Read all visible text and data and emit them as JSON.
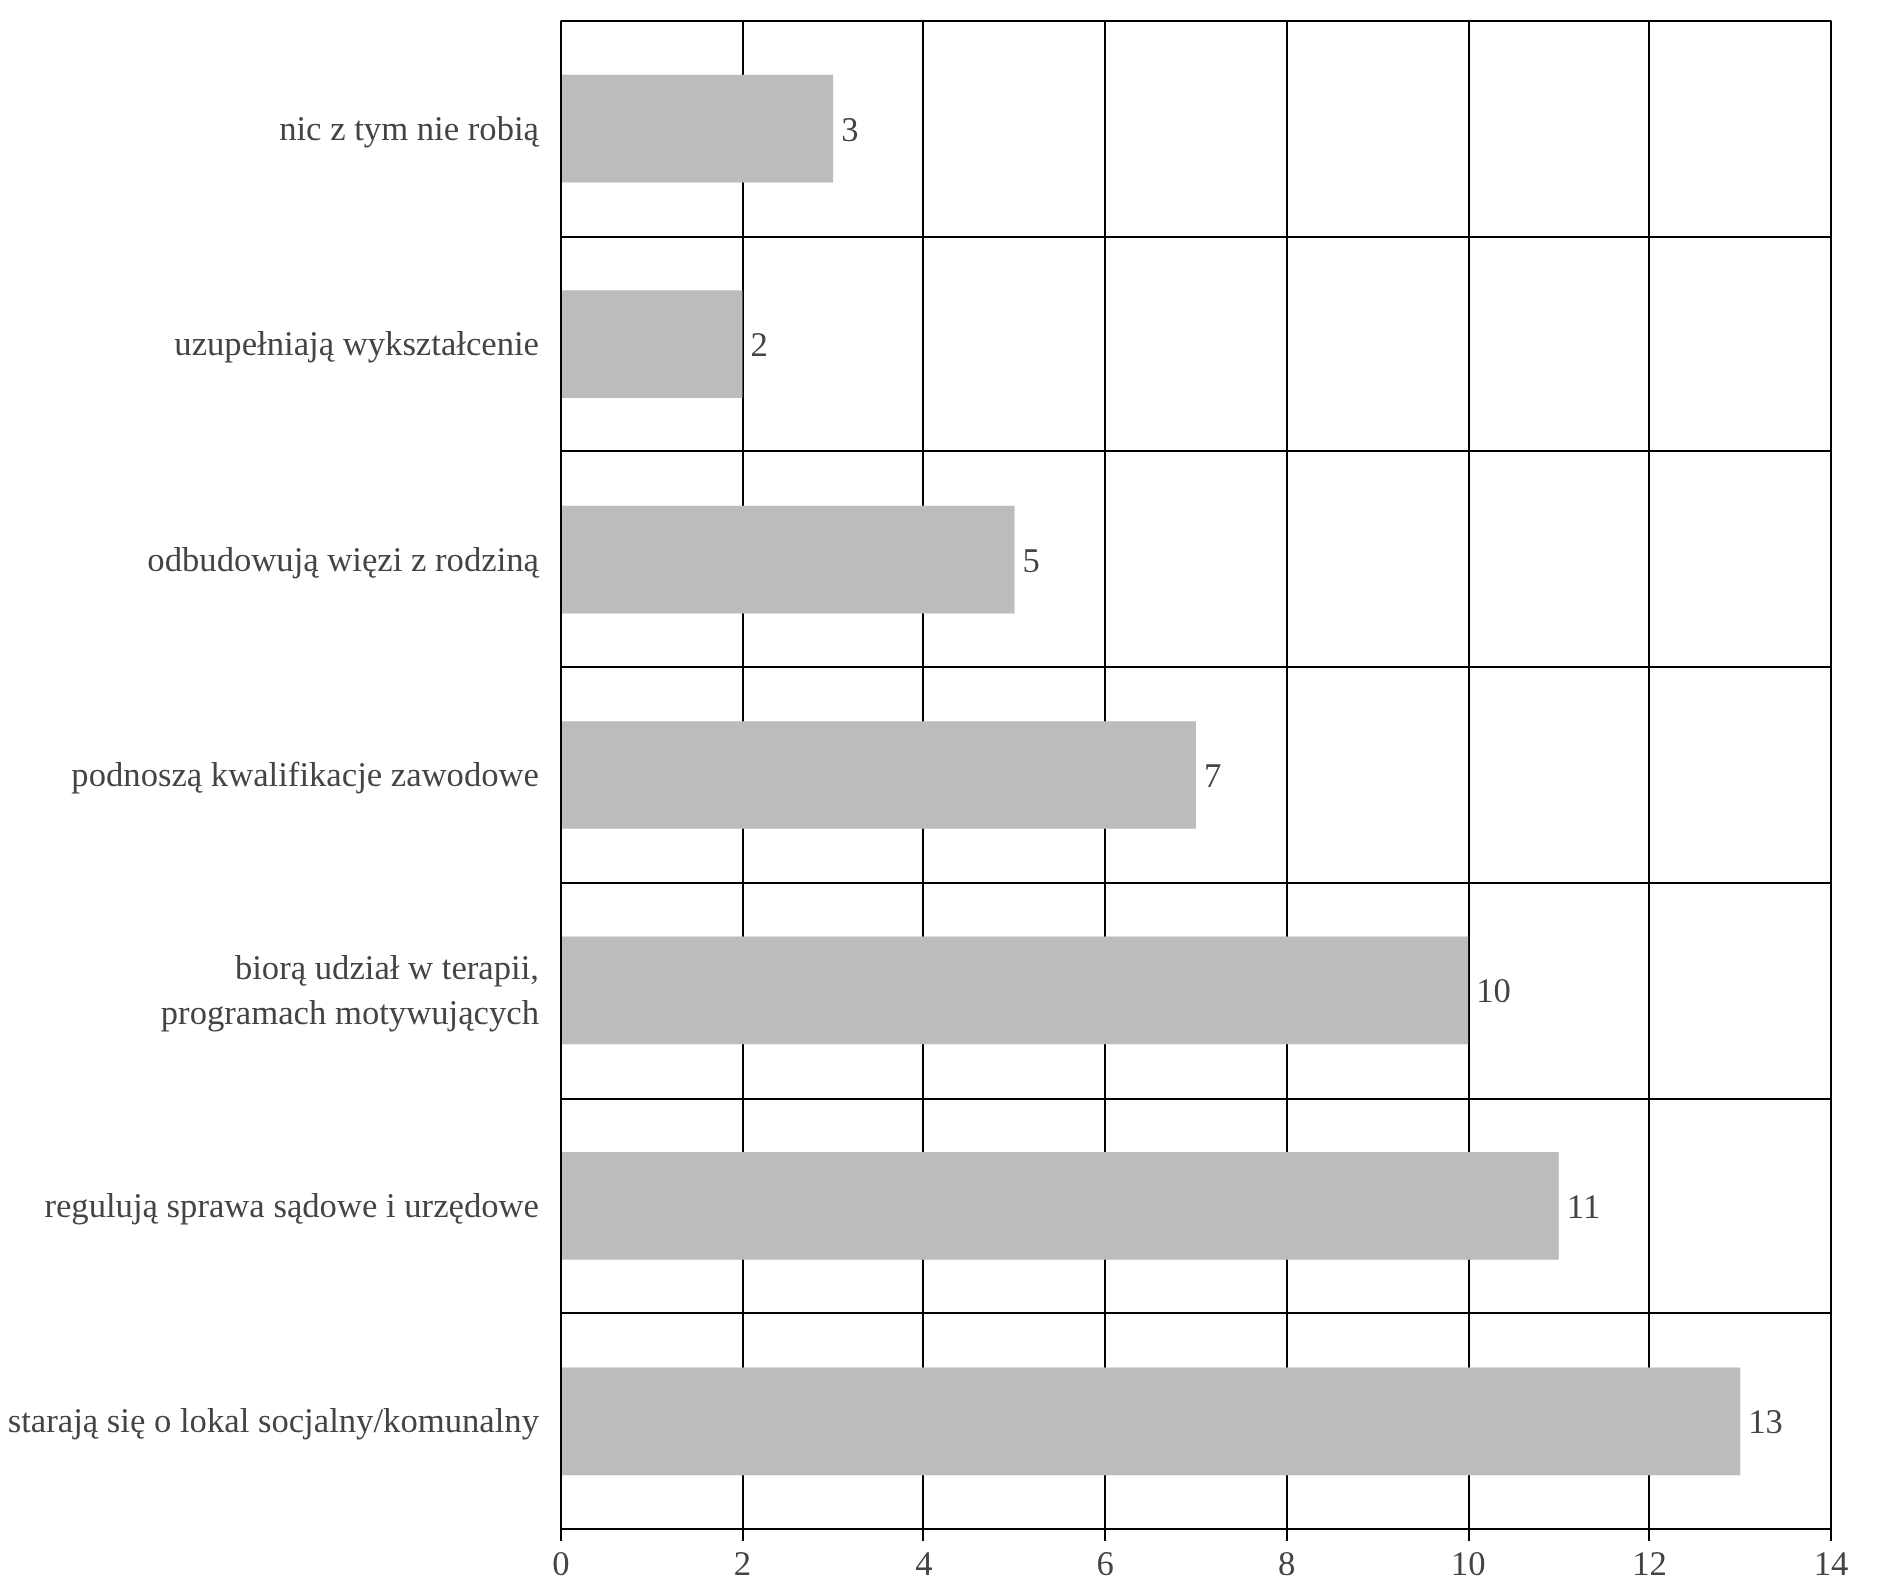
{
  "chart_data": {
    "type": "bar",
    "orientation": "horizontal",
    "categories": [
      "nic z tym nie robią",
      "uzupełniają wykształcenie",
      "odbudowują więzi z rodziną",
      "podnoszą kwalifikacje zawodowe",
      "biorą udział w terapii,\nprogramach motywujących",
      "regulują sprawa sądowe i urzędowe",
      "starają się o lokal socjalny/komunalny"
    ],
    "values": [
      3,
      2,
      5,
      7,
      10,
      11,
      13
    ],
    "color": "#bcbcbe",
    "xlim": [
      0,
      14
    ],
    "xticks": [
      0,
      2,
      4,
      6,
      8,
      10,
      12,
      14
    ],
    "grid": true,
    "data_labels": true
  }
}
